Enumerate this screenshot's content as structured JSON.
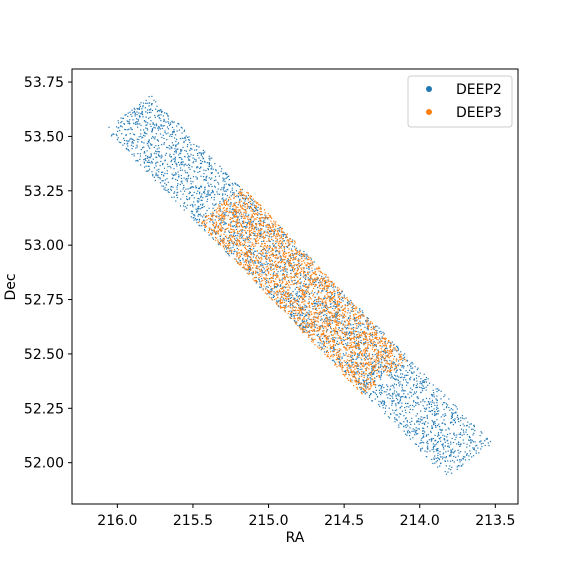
{
  "chart_data": {
    "type": "scatter",
    "title": "",
    "xlabel": "RA",
    "ylabel": "Dec",
    "xlim": [
      216.3,
      213.35
    ],
    "ylim": [
      51.81,
      53.81
    ],
    "x_inverted": true,
    "xticks": [
      216.0,
      215.5,
      215.0,
      214.5,
      214.0,
      213.5
    ],
    "xtick_labels": [
      "216.0",
      "215.5",
      "215.0",
      "214.5",
      "214.0",
      "213.5"
    ],
    "yticks": [
      52.0,
      52.25,
      52.5,
      52.75,
      53.0,
      53.25,
      53.5,
      53.75
    ],
    "ytick_labels": [
      "52.00",
      "52.25",
      "52.50",
      "52.75",
      "53.00",
      "53.25",
      "53.50",
      "53.75"
    ],
    "grid": false,
    "legend_position": "top-right",
    "series": [
      {
        "name": "DEEP2",
        "color": "#1f77b4",
        "region": {
          "corners": [
            [
              216.08,
              53.53
            ],
            [
              215.78,
              53.69
            ],
            [
              213.5,
              52.09
            ],
            [
              213.82,
              51.93
            ]
          ]
        }
      },
      {
        "name": "DEEP3",
        "color": "#ff7f0e",
        "region": {
          "corners": [
            [
              215.47,
              53.11
            ],
            [
              215.17,
              53.27
            ],
            [
              214.08,
              52.47
            ],
            [
              214.38,
              52.31
            ]
          ]
        }
      }
    ]
  }
}
